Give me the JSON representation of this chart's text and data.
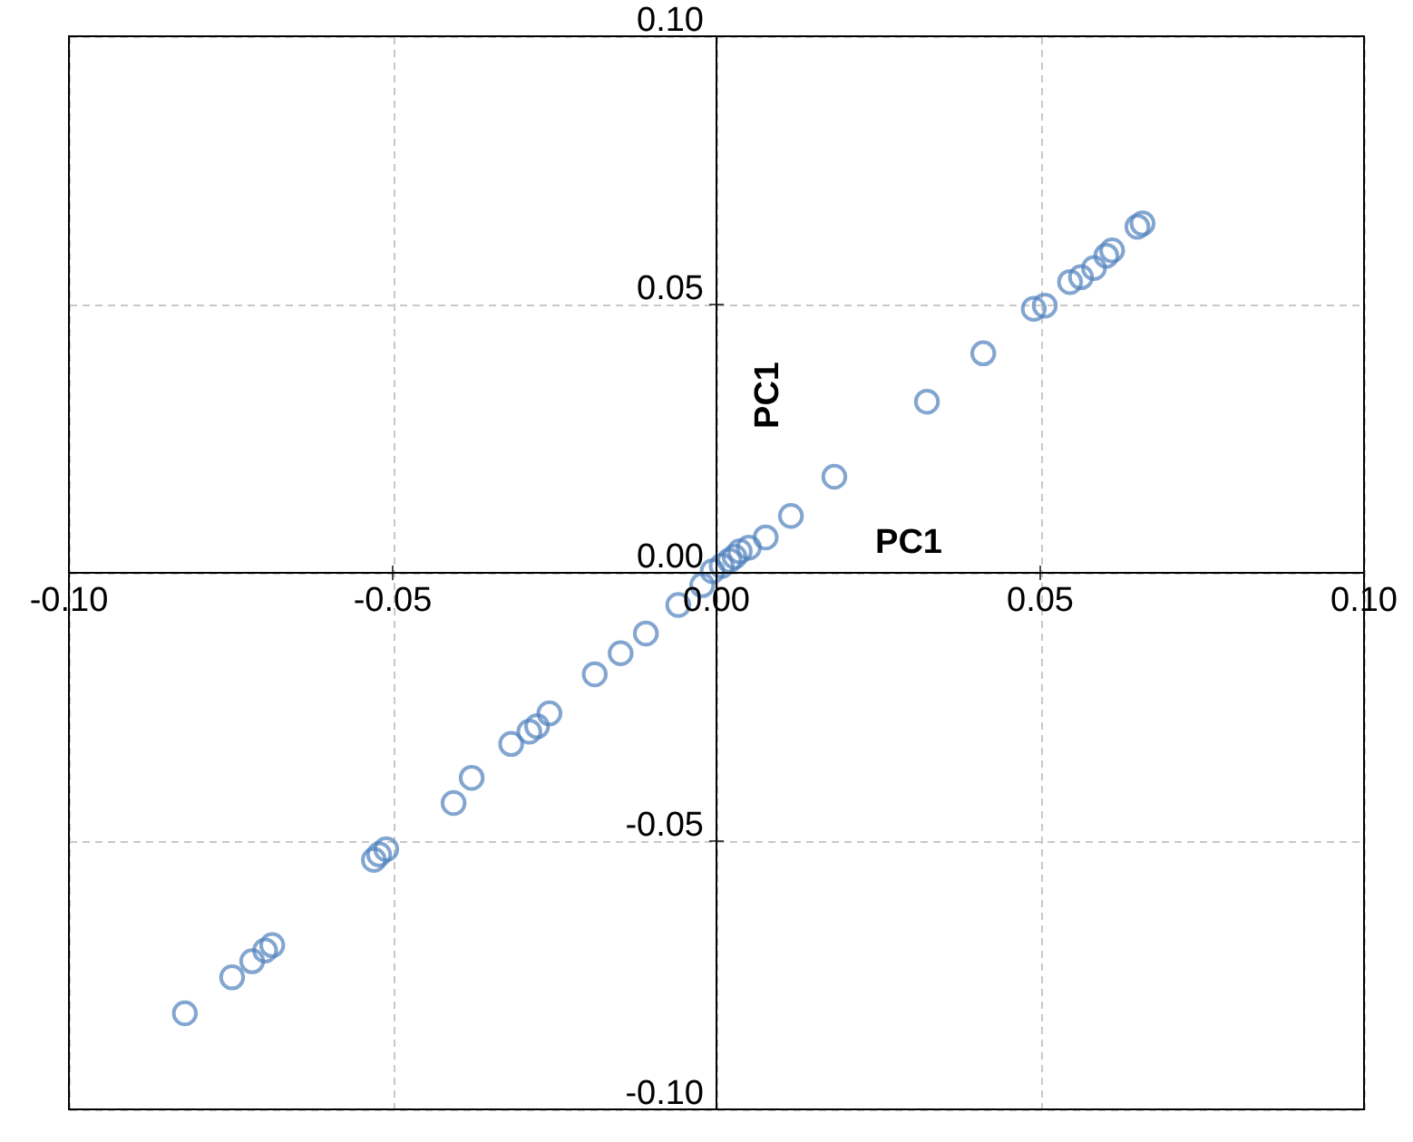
{
  "chart_data": {
    "type": "scatter",
    "xlabel": "PC1",
    "ylabel": "PC1",
    "x": [
      -0.0821,
      -0.0748,
      -0.0717,
      -0.0697,
      -0.0686,
      -0.0529,
      -0.0521,
      -0.051,
      -0.0406,
      -0.0378,
      -0.0317,
      -0.0289,
      -0.0277,
      -0.0258,
      -0.0188,
      -0.0148,
      -0.0109,
      -0.0059,
      -0.0022,
      -0.0006,
      0.0008,
      0.002,
      0.0028,
      0.0036,
      0.005,
      0.0076,
      0.0115,
      0.0182,
      0.0325,
      0.0412,
      0.049,
      0.0507,
      0.0546,
      0.0563,
      0.0583,
      0.0602,
      0.0611,
      0.065,
      0.0658
    ],
    "series": [
      {
        "color": "#4f81bd",
        "values": [
          -0.0821,
          -0.0754,
          -0.0724,
          -0.0704,
          -0.0694,
          -0.0535,
          -0.0525,
          -0.0515,
          -0.0429,
          -0.0382,
          -0.0319,
          -0.0296,
          -0.0286,
          -0.0262,
          -0.0189,
          -0.015,
          -0.0113,
          -0.006,
          -0.0023,
          0.0003,
          0.0013,
          0.0023,
          0.003,
          0.004,
          0.0047,
          0.0066,
          0.0106,
          0.0179,
          0.0319,
          0.0409,
          0.0492,
          0.0498,
          0.0542,
          0.0551,
          0.0568,
          0.0591,
          0.0601,
          0.0645,
          0.0651
        ]
      }
    ],
    "xlim": [
      -0.1,
      0.1
    ],
    "ylim": [
      -0.1,
      0.1
    ],
    "xticks": [
      {
        "value": -0.1,
        "label": "-0.10"
      },
      {
        "value": -0.05,
        "label": "-0.05"
      },
      {
        "value": 0,
        "label": "0.00"
      },
      {
        "value": 0.05,
        "label": "0.05"
      },
      {
        "value": 0.1,
        "label": "0.10"
      }
    ],
    "yticks": [
      {
        "value": -0.1,
        "label": "-0.10"
      },
      {
        "value": -0.05,
        "label": "-0.05"
      },
      {
        "value": 0,
        "label": "0.00"
      },
      {
        "value": 0.05,
        "label": "0.05"
      },
      {
        "value": 0.1,
        "label": "0.10"
      }
    ],
    "grid": true,
    "marker": "circle"
  }
}
